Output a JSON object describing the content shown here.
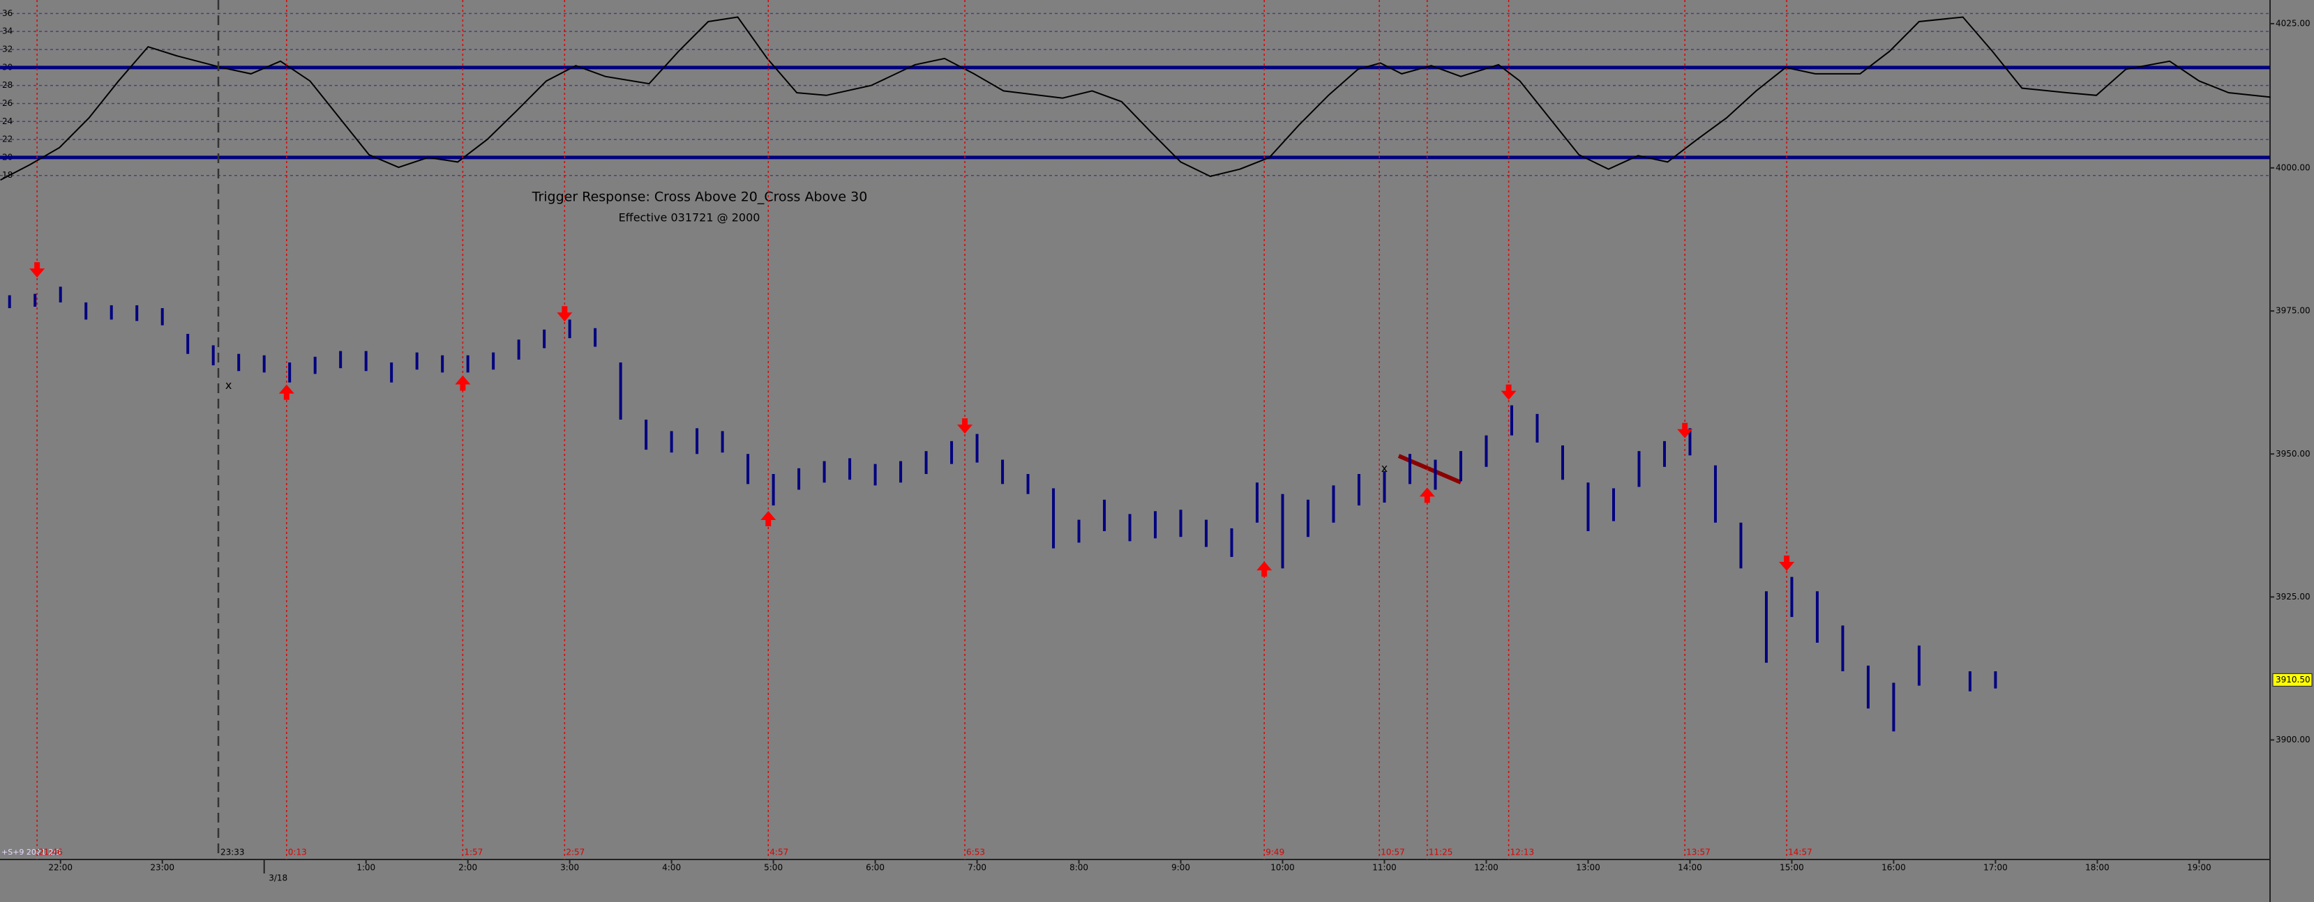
{
  "chart_data": [
    {
      "type": "line",
      "color": "#000000",
      "level_color": "#000080",
      "grid_color": "#4b3f78",
      "x": [
        -0.59,
        -0.3,
        -0.01,
        0.28,
        0.57,
        0.86,
        1.14,
        1.58,
        1.87,
        2.16,
        2.45,
        2.74,
        3.03,
        3.32,
        3.61,
        3.9,
        4.19,
        4.48,
        4.77,
        5.06,
        5.35,
        5.78,
        6.07,
        6.36,
        6.65,
        6.94,
        7.23,
        7.52,
        7.96,
        8.39,
        8.68,
        8.97,
        9.26,
        9.84,
        10.13,
        10.42,
        10.71,
        11.0,
        11.29,
        11.58,
        11.87,
        12.16,
        12.45,
        12.74,
        12.96,
        13.17,
        13.46,
        13.75,
        14.12,
        14.33,
        14.62,
        14.91,
        15.2,
        15.49,
        15.78,
        16.07,
        16.36,
        16.65,
        16.94,
        17.23,
        17.67,
        17.96,
        18.25,
        18.68,
        18.97,
        19.26,
        19.7,
        19.99,
        20.28,
        20.71,
        21.0,
        21.29,
        21.7
      ],
      "values": [
        17.5,
        19.2,
        21.1,
        24.4,
        28.5,
        32.3,
        31.3,
        30,
        29.3,
        30.7,
        28.5,
        24.4,
        20.3,
        18.9,
        20,
        19.5,
        22,
        25.2,
        28.5,
        30.2,
        29,
        28.2,
        31.8,
        35.1,
        35.6,
        31,
        27.2,
        26.9,
        28,
        30.3,
        31,
        29.3,
        27.4,
        26.6,
        27.4,
        26.2,
        22.8,
        19.5,
        17.9,
        18.7,
        20,
        23.6,
        26.9,
        29.8,
        30.5,
        29.3,
        30.2,
        29,
        30.3,
        28.5,
        24.4,
        20.3,
        18.7,
        20.2,
        19.5,
        22,
        24.4,
        27.4,
        30,
        29.3,
        29.3,
        31.8,
        35.1,
        35.6,
        31.8,
        27.7,
        27.2,
        26.9,
        29.8,
        30.7,
        28.5,
        27.2,
        26.7
      ],
      "ylim": [
        17.05,
        37.5
      ],
      "yticks": [
        18,
        20,
        22,
        24,
        26,
        28,
        30,
        32,
        34,
        36
      ],
      "levels": [
        30,
        20
      ],
      "grid": true,
      "y2lim": [
        3997.2,
        4029.1
      ],
      "y2ticks": [
        {
          "value": 4025,
          "label": "4025.00"
        },
        {
          "value": 4000,
          "label": "4000.00"
        }
      ]
    },
    {
      "type": "range_bar",
      "title": "Trigger Response: Cross Above 20_Cross Above 30",
      "subtitle": "Effective 031721 @ 2000",
      "status_text": "+S+9 2021 2/3",
      "color": "#000080",
      "x": [
        -0.5,
        -0.25,
        0,
        0.25,
        0.5,
        0.75,
        1,
        1.25,
        1.5,
        1.75,
        2,
        2.25,
        2.5,
        2.75,
        3,
        3.25,
        3.5,
        3.75,
        4,
        4.25,
        4.5,
        4.75,
        5,
        5.25,
        5.5,
        5.75,
        6,
        6.25,
        6.5,
        6.75,
        7,
        7.25,
        7.5,
        7.75,
        8,
        8.25,
        8.5,
        8.75,
        9,
        9.25,
        9.5,
        9.75,
        10,
        10.25,
        10.5,
        10.75,
        11,
        11.25,
        11.5,
        11.75,
        12,
        12.25,
        12.5,
        12.75,
        13,
        13.25,
        13.5,
        13.75,
        14,
        14.25,
        14.5,
        14.75,
        15,
        15.25,
        15.5,
        15.75,
        16,
        16.25,
        16.5,
        16.75,
        17,
        17.25,
        17.5,
        17.75,
        18,
        18.25,
        18.75,
        19
      ],
      "high": [
        3977.75,
        3978,
        3979.25,
        3976.5,
        3976,
        3976,
        3975.5,
        3971,
        3969,
        3967.5,
        3967.25,
        3966,
        3967,
        3968,
        3968,
        3966,
        3967.75,
        3967.25,
        3967.25,
        3967.75,
        3970,
        3971.75,
        3973.5,
        3972,
        3966,
        3956,
        3954,
        3954.5,
        3954,
        3950,
        3946.5,
        3947.5,
        3948.75,
        3949.25,
        3948.25,
        3948.75,
        3950.5,
        3952.25,
        3953.5,
        3949,
        3946.5,
        3944,
        3938.5,
        3942,
        3939.5,
        3940,
        3940.25,
        3938.5,
        3937,
        3945,
        3943,
        3942,
        3944.5,
        3946.5,
        3947,
        3950,
        3949,
        3950.5,
        3953.25,
        3958.5,
        3957,
        3951.5,
        3945,
        3944,
        3950.5,
        3952.25,
        3954.5,
        3948,
        3938,
        3926,
        3928.5,
        3926,
        3920,
        3913,
        3910,
        3916.5,
        3912,
        3912
      ],
      "low": [
        3975.5,
        3975.75,
        3976.5,
        3973.5,
        3973.5,
        3973.25,
        3972.5,
        3967.5,
        3965.5,
        3964.5,
        3964.25,
        3962.5,
        3964,
        3965,
        3964.5,
        3962.5,
        3964.75,
        3964.25,
        3964.25,
        3964.75,
        3966.5,
        3968.5,
        3970.25,
        3968.75,
        3956,
        3950.75,
        3950.25,
        3950,
        3950.25,
        3944.75,
        3941,
        3943.75,
        3945,
        3945.5,
        3944.5,
        3945,
        3946.5,
        3948.25,
        3948.5,
        3944.75,
        3943,
        3933.5,
        3934.5,
        3936.5,
        3934.75,
        3935.25,
        3935.5,
        3933.75,
        3932,
        3938,
        3930,
        3935.5,
        3938,
        3941,
        3941.5,
        3944.75,
        3943.75,
        3945.25,
        3947.75,
        3953.25,
        3952,
        3945.5,
        3936.5,
        3938.25,
        3944.25,
        3947.75,
        3949.75,
        3938,
        3930,
        3913.5,
        3921.5,
        3917,
        3912,
        3905.5,
        3901.5,
        3909.5,
        3908.5,
        3909
      ],
      "xlim": [
        -0.594,
        21.696
      ],
      "xticks": [
        {
          "value": 0,
          "label": "22:00"
        },
        {
          "value": 1,
          "label": "23:00"
        },
        {
          "value": 3,
          "label": "1:00"
        },
        {
          "value": 4,
          "label": "2:00"
        },
        {
          "value": 5,
          "label": "3:00"
        },
        {
          "value": 6,
          "label": "4:00"
        },
        {
          "value": 7,
          "label": "5:00"
        },
        {
          "value": 8,
          "label": "6:00"
        },
        {
          "value": 9,
          "label": "7:00"
        },
        {
          "value": 10,
          "label": "8:00"
        },
        {
          "value": 11,
          "label": "9:00"
        },
        {
          "value": 12,
          "label": "10:00"
        },
        {
          "value": 13,
          "label": "11:00"
        },
        {
          "value": 14,
          "label": "12:00"
        },
        {
          "value": 15,
          "label": "13:00"
        },
        {
          "value": 16,
          "label": "14:00"
        },
        {
          "value": 17,
          "label": "15:00"
        },
        {
          "value": 18,
          "label": "16:00"
        },
        {
          "value": 19,
          "label": "17:00"
        },
        {
          "value": 20,
          "label": "18:00"
        },
        {
          "value": 21,
          "label": "19:00"
        }
      ],
      "date_marks": [
        {
          "value": 2,
          "label": "3/18"
        }
      ],
      "ylim": [
        3879.1,
        3997.2
      ],
      "yticks": [
        {
          "value": 3975,
          "label": "3975.00"
        },
        {
          "value": 3950,
          "label": "3950.00"
        },
        {
          "value": 3925,
          "label": "3925.00"
        },
        {
          "value": 3900,
          "label": "3900.00"
        }
      ],
      "event_color": "#e00000",
      "events": [
        {
          "value": -0.23,
          "label": "21:46",
          "direction": "down",
          "price": 3982.2
        },
        {
          "value": 2.22,
          "label": "0:13",
          "direction": "up",
          "price": 3960.8
        },
        {
          "value": 3.95,
          "label": "1:57",
          "direction": "up",
          "price": 3962.4
        },
        {
          "value": 4.95,
          "label": "2:57",
          "direction": "down",
          "price": 3974.5
        },
        {
          "value": 6.95,
          "label": "4:57",
          "direction": "up",
          "price": 3938.7
        },
        {
          "value": 8.88,
          "label": "6:53",
          "direction": "down",
          "price": 3954.9
        },
        {
          "value": 11.82,
          "label": "9:49",
          "direction": "up",
          "price": 3929.9
        },
        {
          "value": 12.95,
          "label": "10:57"
        },
        {
          "value": 13.42,
          "label": "11:25",
          "direction": "up",
          "price": 3942.8
        },
        {
          "value": 14.22,
          "label": "12:13",
          "direction": "down",
          "price": 3960.8
        },
        {
          "value": 15.95,
          "label": "13:57",
          "direction": "down",
          "price": 3954.1
        },
        {
          "value": 16.95,
          "label": "14:57",
          "direction": "down",
          "price": 3930.9
        }
      ],
      "cursor": {
        "value": 1.55,
        "label": "23:33"
      },
      "annotations": [
        {
          "text": "x",
          "x": 1.65,
          "price": 3961.9
        },
        {
          "text": "x",
          "x": 13.0,
          "price": 3947.4
        }
      ],
      "last_price": {
        "value": 3910.5,
        "label": "3910.50"
      }
    }
  ]
}
